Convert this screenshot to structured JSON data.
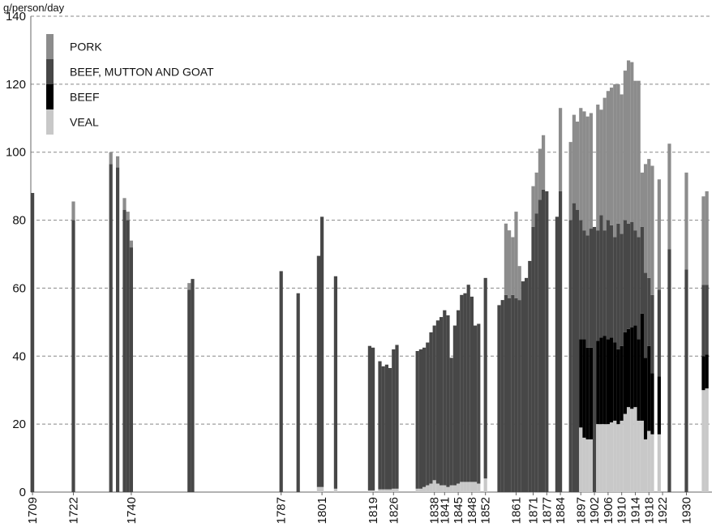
{
  "chart_data": {
    "type": "bar",
    "stacked": true,
    "y_label": "g/person/day",
    "categories": [
      "1709",
      null,
      null,
      null,
      null,
      null,
      null,
      null,
      null,
      null,
      null,
      null,
      "1722",
      null,
      null,
      null,
      null,
      null,
      null,
      null,
      null,
      null,
      null,
      null,
      null,
      null,
      null,
      null,
      null,
      "1740",
      null,
      null,
      null,
      null,
      null,
      null,
      null,
      null,
      null,
      null,
      null,
      null,
      null,
      null,
      null,
      null,
      null,
      null,
      null,
      null,
      null,
      null,
      null,
      null,
      null,
      null,
      null,
      null,
      null,
      null,
      null,
      null,
      null,
      null,
      null,
      null,
      null,
      null,
      null,
      null,
      null,
      null,
      null,
      "1787",
      null,
      null,
      null,
      null,
      null,
      null,
      null,
      null,
      null,
      null,
      null,
      "1801",
      null,
      null,
      null,
      null,
      null,
      null,
      null,
      null,
      null,
      null,
      null,
      null,
      null,
      null,
      "1819",
      null,
      null,
      null,
      null,
      null,
      "1826",
      null,
      null,
      null,
      null,
      null,
      null,
      null,
      null,
      null,
      null,
      null,
      "1838",
      null,
      null,
      "1841",
      null,
      null,
      null,
      "1845",
      null,
      null,
      null,
      "1848",
      null,
      null,
      null,
      "1852",
      null,
      null,
      null,
      null,
      null,
      null,
      null,
      null,
      "1861",
      null,
      null,
      null,
      null,
      "1871",
      null,
      null,
      null,
      "1877",
      null,
      null,
      null,
      "1884",
      null,
      null,
      null,
      null,
      null,
      "1897",
      null,
      null,
      null,
      "1902",
      null,
      null,
      null,
      "1906",
      null,
      null,
      null,
      "1910",
      null,
      null,
      null,
      "1914",
      null,
      null,
      null,
      "1918",
      null,
      null,
      null,
      "1922",
      null,
      null,
      null,
      null,
      null,
      null,
      "1930",
      null,
      null,
      null,
      null,
      null,
      null,
      null
    ],
    "series": [
      {
        "name": "VEAL",
        "color": "#c8c8c8",
        "values": [
          null,
          null,
          null,
          null,
          null,
          null,
          null,
          null,
          null,
          null,
          null,
          null,
          null,
          null,
          null,
          null,
          null,
          null,
          null,
          null,
          null,
          null,
          null,
          null,
          null,
          null,
          null,
          null,
          null,
          null,
          null,
          null,
          null,
          null,
          null,
          null,
          null,
          null,
          null,
          null,
          null,
          null,
          null,
          null,
          null,
          null,
          null,
          null,
          null,
          null,
          null,
          null,
          null,
          null,
          null,
          null,
          null,
          null,
          null,
          null,
          null,
          null,
          null,
          null,
          null,
          null,
          null,
          null,
          null,
          null,
          null,
          null,
          null,
          null,
          null,
          null,
          null,
          null,
          null,
          null,
          null,
          null,
          null,
          null,
          1.5,
          1.5,
          null,
          null,
          null,
          1,
          null,
          null,
          null,
          null,
          null,
          null,
          null,
          null,
          null,
          0.5,
          0.5,
          null,
          0.8,
          0.8,
          0.8,
          0.8,
          1,
          1,
          null,
          null,
          null,
          null,
          null,
          1,
          1,
          1.5,
          2,
          2.5,
          3.5,
          2.5,
          2,
          2,
          1.5,
          2,
          2,
          2.5,
          3,
          3,
          3,
          3,
          3,
          2.5,
          null,
          4,
          null,
          null,
          null,
          null,
          null,
          null,
          null,
          null,
          null,
          null,
          null,
          null,
          null,
          null,
          null,
          null,
          null,
          null,
          null,
          null,
          null,
          null,
          null,
          null,
          null,
          null,
          null,
          19,
          16,
          15.5,
          15.5,
          null,
          20,
          20,
          20,
          20,
          20.5,
          21,
          20,
          21,
          23,
          25,
          24.5,
          25,
          21,
          21,
          15.5,
          18,
          17,
          null,
          17,
          null,
          null,
          null,
          null,
          null,
          null,
          null,
          null,
          null,
          null,
          null,
          null,
          30,
          30.5,
          null
        ]
      },
      {
        "name": "BEEF",
        "color": "#000000",
        "values": [
          null,
          null,
          null,
          null,
          null,
          null,
          null,
          null,
          null,
          null,
          null,
          null,
          null,
          null,
          null,
          null,
          null,
          null,
          null,
          null,
          null,
          null,
          null,
          null,
          null,
          null,
          null,
          null,
          null,
          null,
          null,
          null,
          null,
          null,
          null,
          null,
          null,
          null,
          null,
          null,
          null,
          null,
          null,
          null,
          null,
          null,
          null,
          null,
          null,
          null,
          null,
          null,
          null,
          null,
          null,
          null,
          null,
          null,
          null,
          null,
          null,
          null,
          null,
          null,
          null,
          null,
          null,
          null,
          null,
          null,
          null,
          null,
          null,
          null,
          null,
          null,
          null,
          null,
          null,
          null,
          null,
          null,
          null,
          null,
          null,
          null,
          null,
          null,
          null,
          null,
          null,
          null,
          null,
          null,
          null,
          null,
          null,
          null,
          null,
          null,
          null,
          null,
          null,
          null,
          null,
          null,
          null,
          null,
          null,
          null,
          null,
          null,
          null,
          null,
          null,
          null,
          null,
          null,
          null,
          null,
          null,
          null,
          null,
          null,
          null,
          null,
          null,
          null,
          null,
          null,
          null,
          null,
          null,
          null,
          null,
          null,
          null,
          null,
          null,
          null,
          null,
          null,
          null,
          null,
          null,
          null,
          null,
          null,
          null,
          null,
          null,
          null,
          null,
          null,
          null,
          null,
          null,
          null,
          null,
          null,
          null,
          26,
          29,
          27,
          27,
          null,
          24.5,
          25.5,
          26,
          25,
          25,
          23,
          22,
          22,
          24,
          23,
          24,
          24,
          24,
          31.5,
          24,
          25,
          18,
          null,
          17,
          null,
          null,
          null,
          null,
          null,
          null,
          null,
          null,
          null,
          null,
          null,
          null,
          10,
          10,
          null
        ]
      },
      {
        "name": "BEEF, MUTTON AND GOAT",
        "color": "#474747",
        "values": [
          88,
          null,
          null,
          null,
          null,
          null,
          null,
          null,
          null,
          null,
          null,
          null,
          80,
          null,
          null,
          null,
          null,
          null,
          null,
          null,
          null,
          null,
          null,
          96.5,
          null,
          95.5,
          null,
          83,
          80,
          72,
          null,
          null,
          null,
          null,
          null,
          null,
          null,
          null,
          null,
          null,
          null,
          null,
          null,
          null,
          null,
          null,
          59.5,
          62.7,
          null,
          null,
          null,
          null,
          null,
          null,
          null,
          null,
          null,
          null,
          null,
          null,
          null,
          null,
          null,
          null,
          null,
          null,
          null,
          null,
          null,
          null,
          null,
          null,
          null,
          65,
          null,
          null,
          null,
          null,
          58.5,
          null,
          null,
          null,
          null,
          null,
          68,
          79.5,
          null,
          null,
          null,
          62.5,
          null,
          null,
          null,
          null,
          null,
          null,
          null,
          null,
          null,
          42.5,
          42,
          null,
          37.7,
          36.2,
          36.7,
          35.7,
          41,
          42.3,
          null,
          null,
          null,
          null,
          null,
          40.5,
          41,
          41,
          42,
          44.5,
          45.5,
          48,
          49.5,
          51.5,
          50.5,
          37.5,
          47,
          51,
          55,
          55.5,
          58,
          54.5,
          46,
          47,
          null,
          59,
          null,
          null,
          null,
          55,
          56.5,
          58,
          57,
          58,
          57,
          56.5,
          62,
          63,
          68,
          78,
          82,
          86,
          89,
          88.5,
          null,
          null,
          81,
          88.5,
          null,
          null,
          80,
          85,
          83,
          35,
          32,
          33,
          35,
          78,
          32.5,
          36,
          31,
          35,
          33,
          31,
          37,
          33,
          33,
          31,
          31,
          28,
          30,
          25.5,
          25,
          20,
          23,
          null,
          25.5,
          null,
          null,
          71.5,
          null,
          null,
          null,
          null,
          65.5,
          null,
          null,
          null,
          null,
          21,
          20.5,
          null
        ]
      },
      {
        "name": "PORK",
        "color": "#8c8c8c",
        "values": [
          null,
          null,
          null,
          null,
          null,
          null,
          null,
          null,
          null,
          null,
          null,
          null,
          5.5,
          null,
          null,
          null,
          null,
          null,
          null,
          null,
          null,
          null,
          null,
          3.5,
          null,
          3.3,
          null,
          3.5,
          2.5,
          2,
          null,
          null,
          null,
          null,
          null,
          null,
          null,
          null,
          null,
          null,
          null,
          null,
          null,
          null,
          null,
          null,
          2,
          null,
          null,
          null,
          null,
          null,
          null,
          null,
          null,
          null,
          null,
          null,
          null,
          null,
          null,
          null,
          null,
          null,
          null,
          null,
          null,
          null,
          null,
          null,
          null,
          null,
          null,
          null,
          null,
          null,
          null,
          null,
          null,
          null,
          null,
          null,
          null,
          null,
          null,
          null,
          null,
          null,
          null,
          null,
          null,
          null,
          null,
          null,
          null,
          null,
          null,
          null,
          null,
          null,
          null,
          null,
          null,
          null,
          null,
          null,
          null,
          null,
          null,
          null,
          null,
          null,
          null,
          null,
          null,
          null,
          null,
          null,
          null,
          null,
          null,
          null,
          null,
          null,
          null,
          null,
          null,
          null,
          null,
          null,
          null,
          null,
          null,
          null,
          null,
          null,
          null,
          null,
          null,
          21,
          20,
          17,
          25.5,
          10,
          null,
          null,
          null,
          12,
          12,
          15,
          16,
          null,
          null,
          null,
          null,
          24.5,
          null,
          null,
          23,
          26,
          26,
          33,
          35,
          35,
          34,
          null,
          37,
          31,
          39,
          38,
          40.5,
          45,
          41,
          41,
          44,
          48,
          47,
          44,
          46,
          16,
          32,
          35,
          38,
          null,
          32.5,
          null,
          null,
          31,
          null,
          null,
          null,
          null,
          28.5,
          null,
          null,
          null,
          null,
          26,
          27.5,
          null
        ]
      }
    ],
    "ylim": [
      0,
      140
    ],
    "yticks": [
      0,
      20,
      40,
      60,
      80,
      100,
      120,
      140
    ],
    "grid": true,
    "legend": "upper left"
  }
}
